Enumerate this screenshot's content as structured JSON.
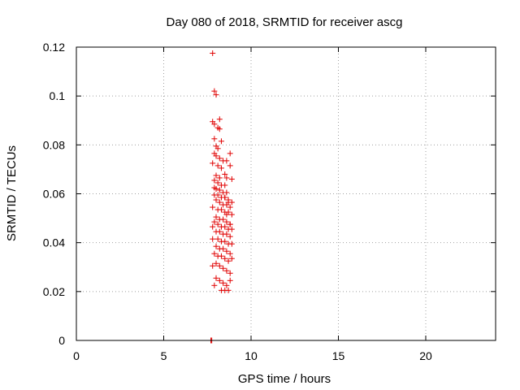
{
  "chart_data": {
    "type": "scatter",
    "title": "Day 080 of 2018, SRMTID for receiver ascg",
    "xlabel": "GPS time / hours",
    "ylabel": "SRMTID / TECUs",
    "xlim": [
      0,
      24
    ],
    "ylim": [
      0,
      0.12
    ],
    "xticks": [
      "0",
      "5",
      "10",
      "15",
      "20"
    ],
    "xtick_values": [
      0,
      5,
      10,
      15,
      20
    ],
    "yticks": [
      "0",
      "0.02",
      "0.04",
      "0.06",
      "0.08",
      "0.1",
      "0.12"
    ],
    "ytick_values": [
      0,
      0.02,
      0.04,
      0.06,
      0.08,
      0.1,
      0.12
    ],
    "grid": true,
    "marker": "plus",
    "color": "#e00000",
    "series": [
      {
        "x": [
          7.8,
          7.9,
          8.0,
          7.8,
          7.9,
          8.2,
          8.1,
          8.2,
          7.9,
          8.0,
          8.3,
          8.1,
          7.9,
          8.0,
          8.2,
          8.4,
          7.8,
          8.1,
          8.3,
          8.5,
          8.0,
          8.2,
          8.6,
          7.9,
          8.1,
          8.3,
          8.5,
          8.8,
          8.0,
          8.2,
          8.4,
          8.6,
          8.9,
          7.9,
          8.1,
          8.3,
          8.5,
          8.7,
          8.9,
          8.0,
          8.2,
          8.4,
          8.6,
          8.8,
          7.8,
          8.1,
          8.3,
          8.5,
          8.7,
          8.9,
          8.0,
          8.2,
          8.4,
          8.6,
          8.8,
          7.9,
          8.1,
          8.3,
          8.5,
          8.7,
          8.9,
          8.0,
          8.2,
          8.4,
          8.6,
          8.8,
          7.8,
          8.1,
          8.3,
          8.5,
          8.7,
          8.9,
          8.0,
          8.2,
          8.4,
          8.6,
          8.8,
          7.9,
          8.1,
          8.3,
          8.5,
          8.7,
          8.9,
          8.0,
          8.2,
          8.4,
          8.6,
          8.8,
          7.8,
          8.0,
          8.2,
          8.4,
          8.6,
          8.8,
          7.9,
          8.3,
          8.5,
          8.7,
          7.8,
          8.6,
          8.8,
          7.9,
          8.5,
          8.7,
          8.6,
          8.8,
          7.7,
          7.75
        ],
        "y": [
          0.1175,
          0.102,
          0.1005,
          0.0895,
          0.0885,
          0.0905,
          0.087,
          0.0865,
          0.0825,
          0.0795,
          0.0815,
          0.0785,
          0.0765,
          0.0755,
          0.0745,
          0.0735,
          0.0725,
          0.0715,
          0.0705,
          0.068,
          0.0675,
          0.0665,
          0.0665,
          0.0655,
          0.0645,
          0.0635,
          0.0635,
          0.0765,
          0.062,
          0.0615,
          0.0605,
          0.0605,
          0.066,
          0.0595,
          0.0595,
          0.0585,
          0.0585,
          0.0575,
          0.0565,
          0.0575,
          0.0565,
          0.0555,
          0.0555,
          0.0545,
          0.0545,
          0.0535,
          0.0535,
          0.0525,
          0.0525,
          0.0515,
          0.0505,
          0.0495,
          0.0495,
          0.0485,
          0.0475,
          0.0485,
          0.0475,
          0.0465,
          0.0465,
          0.0455,
          0.0455,
          0.0445,
          0.0445,
          0.0435,
          0.0435,
          0.0425,
          0.0415,
          0.0415,
          0.0405,
          0.0405,
          0.0395,
          0.0395,
          0.0385,
          0.0375,
          0.0375,
          0.0365,
          0.0355,
          0.0355,
          0.0345,
          0.0345,
          0.0335,
          0.0325,
          0.0335,
          0.0315,
          0.0305,
          0.0295,
          0.0285,
          0.0275,
          0.0305,
          0.0255,
          0.0245,
          0.0235,
          0.0225,
          0.0245,
          0.0225,
          0.0205,
          0.0205,
          0.0205,
          0.0465,
          0.0735,
          0.0715,
          0.0625,
          0.0585,
          0.0565,
          0.0515,
          0.0475,
          0.0,
          0.0
        ]
      }
    ]
  }
}
